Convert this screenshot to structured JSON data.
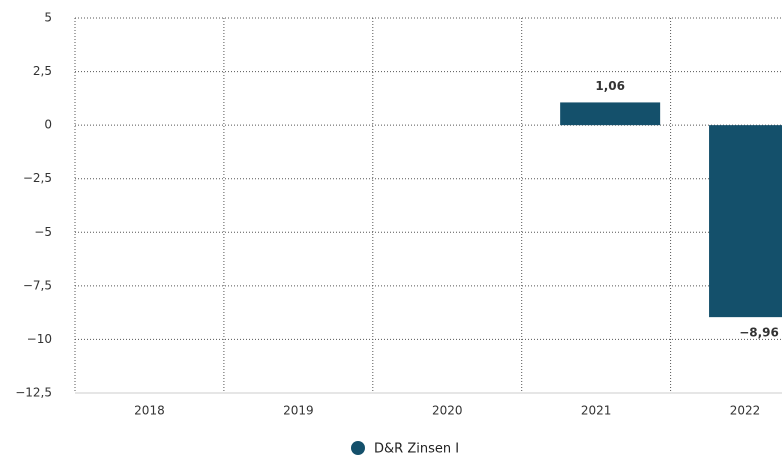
{
  "chart_data": {
    "type": "bar",
    "categories": [
      "2018",
      "2019",
      "2020",
      "2021",
      "2022"
    ],
    "series": [
      {
        "name": "D&R Zinsen I",
        "color": "#14506b",
        "values": [
          null,
          null,
          null,
          1.06,
          -8.96
        ],
        "value_labels": [
          null,
          null,
          null,
          "1,06",
          "−8,96"
        ]
      }
    ],
    "ylim": [
      -12.5,
      5
    ],
    "yticks": [
      5,
      {
        "value": 2.5,
        "label": "2,5"
      },
      0,
      {
        "value": -2.5,
        "label": "−2,5"
      },
      {
        "value": -5,
        "label": "−5"
      },
      {
        "value": -7.5,
        "label": "−7,5"
      },
      {
        "value": -10,
        "label": "−10"
      },
      {
        "value": -12.5,
        "label": "−12,5"
      }
    ],
    "grid": true
  }
}
